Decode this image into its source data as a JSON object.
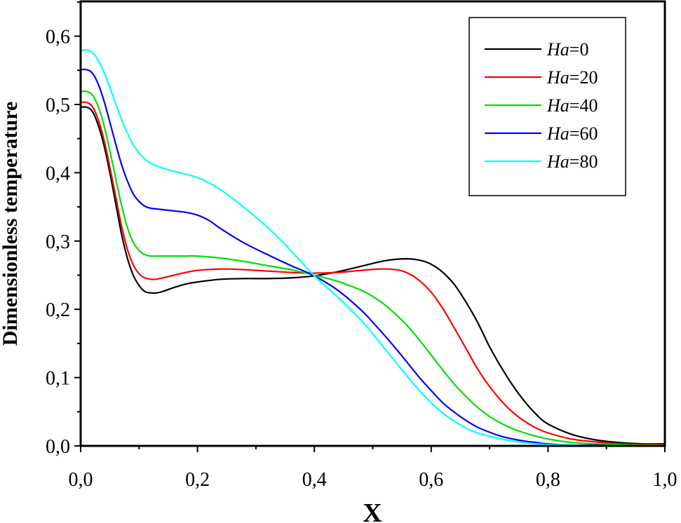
{
  "chart_data": {
    "type": "line",
    "xlabel": "X",
    "ylabel": "Dimensionless temperature",
    "xlim": [
      0.0,
      1.0
    ],
    "ylim": [
      0.0,
      0.65
    ],
    "x_ticks": [
      0.0,
      0.2,
      0.4,
      0.6,
      0.8,
      1.0
    ],
    "x_tick_labels": [
      "0,0",
      "0,2",
      "0,4",
      "0,6",
      "0,8",
      "1,0"
    ],
    "y_ticks": [
      0.0,
      0.1,
      0.2,
      0.3,
      0.4,
      0.5,
      0.6
    ],
    "y_tick_labels": [
      "0,0",
      "0,1",
      "0,2",
      "0,3",
      "0,4",
      "0,5",
      "0,6"
    ],
    "grid": false,
    "legend_position": "top-right",
    "series": [
      {
        "name": "Ha=0",
        "name_italic": "Ha",
        "name_rest": "=0",
        "color": "#000000",
        "x": [
          0,
          0.01,
          0.02,
          0.03,
          0.04,
          0.05,
          0.06,
          0.07,
          0.08,
          0.09,
          0.1,
          0.11,
          0.12,
          0.13,
          0.14,
          0.16,
          0.18,
          0.2,
          0.24,
          0.28,
          0.32,
          0.36,
          0.4,
          0.44,
          0.48,
          0.52,
          0.555,
          0.58,
          0.6,
          0.62,
          0.64,
          0.66,
          0.68,
          0.7,
          0.72,
          0.74,
          0.76,
          0.78,
          0.8,
          0.84,
          0.88,
          0.92,
          0.96,
          1.0
        ],
        "y": [
          0.496,
          0.496,
          0.49,
          0.47,
          0.44,
          0.4,
          0.355,
          0.31,
          0.275,
          0.25,
          0.235,
          0.226,
          0.224,
          0.224,
          0.226,
          0.232,
          0.237,
          0.24,
          0.244,
          0.245,
          0.245,
          0.246,
          0.249,
          0.255,
          0.263,
          0.271,
          0.274,
          0.272,
          0.266,
          0.254,
          0.236,
          0.21,
          0.18,
          0.145,
          0.115,
          0.088,
          0.065,
          0.046,
          0.032,
          0.017,
          0.009,
          0.005,
          0.003,
          0.003
        ]
      },
      {
        "name": "Ha=20",
        "name_italic": "Ha",
        "name_rest": "=20",
        "color": "#ff0000",
        "x": [
          0,
          0.01,
          0.02,
          0.03,
          0.04,
          0.05,
          0.06,
          0.07,
          0.08,
          0.09,
          0.1,
          0.11,
          0.12,
          0.13,
          0.14,
          0.16,
          0.18,
          0.2,
          0.24,
          0.28,
          0.32,
          0.36,
          0.4,
          0.44,
          0.48,
          0.51,
          0.54,
          0.56,
          0.58,
          0.6,
          0.62,
          0.64,
          0.66,
          0.68,
          0.7,
          0.72,
          0.74,
          0.76,
          0.78,
          0.8,
          0.84,
          0.88,
          0.92,
          0.96,
          1.0
        ],
        "y": [
          0.503,
          0.503,
          0.497,
          0.478,
          0.448,
          0.408,
          0.365,
          0.322,
          0.288,
          0.265,
          0.252,
          0.246,
          0.244,
          0.244,
          0.246,
          0.25,
          0.254,
          0.257,
          0.259,
          0.258,
          0.256,
          0.254,
          0.253,
          0.254,
          0.257,
          0.259,
          0.258,
          0.253,
          0.242,
          0.225,
          0.201,
          0.172,
          0.142,
          0.112,
          0.087,
          0.066,
          0.049,
          0.036,
          0.026,
          0.019,
          0.01,
          0.006,
          0.003,
          0.002,
          0.002
        ]
      },
      {
        "name": "Ha=40",
        "name_italic": "Ha",
        "name_rest": "=40",
        "color": "#00e000",
        "x": [
          0,
          0.01,
          0.02,
          0.03,
          0.04,
          0.05,
          0.06,
          0.07,
          0.08,
          0.09,
          0.1,
          0.11,
          0.12,
          0.13,
          0.14,
          0.16,
          0.18,
          0.2,
          0.24,
          0.28,
          0.32,
          0.36,
          0.4,
          0.44,
          0.48,
          0.5,
          0.52,
          0.54,
          0.56,
          0.58,
          0.6,
          0.62,
          0.64,
          0.66,
          0.68,
          0.7,
          0.72,
          0.74,
          0.76,
          0.78,
          0.8,
          0.84,
          0.88,
          0.92,
          0.96,
          1.0
        ],
        "y": [
          0.519,
          0.519,
          0.514,
          0.497,
          0.469,
          0.432,
          0.392,
          0.352,
          0.32,
          0.298,
          0.286,
          0.28,
          0.278,
          0.278,
          0.278,
          0.278,
          0.278,
          0.278,
          0.275,
          0.27,
          0.264,
          0.258,
          0.25,
          0.241,
          0.228,
          0.219,
          0.207,
          0.192,
          0.175,
          0.155,
          0.133,
          0.111,
          0.09,
          0.072,
          0.056,
          0.043,
          0.033,
          0.025,
          0.019,
          0.014,
          0.01,
          0.005,
          0.003,
          0.002,
          0.001,
          0.001
        ]
      },
      {
        "name": "Ha=60",
        "name_italic": "Ha",
        "name_rest": "=60",
        "color": "#0000ff",
        "x": [
          0,
          0.01,
          0.02,
          0.03,
          0.04,
          0.05,
          0.06,
          0.07,
          0.08,
          0.09,
          0.1,
          0.11,
          0.12,
          0.13,
          0.14,
          0.16,
          0.18,
          0.2,
          0.22,
          0.24,
          0.28,
          0.32,
          0.36,
          0.4,
          0.44,
          0.48,
          0.5,
          0.52,
          0.54,
          0.56,
          0.58,
          0.6,
          0.62,
          0.64,
          0.66,
          0.68,
          0.7,
          0.72,
          0.74,
          0.76,
          0.78,
          0.8,
          0.84,
          0.88,
          0.92,
          0.96,
          1.0
        ],
        "y": [
          0.551,
          0.551,
          0.546,
          0.53,
          0.505,
          0.474,
          0.442,
          0.412,
          0.388,
          0.369,
          0.358,
          0.351,
          0.348,
          0.347,
          0.346,
          0.344,
          0.342,
          0.338,
          0.33,
          0.318,
          0.297,
          0.28,
          0.264,
          0.249,
          0.228,
          0.199,
          0.181,
          0.162,
          0.142,
          0.121,
          0.1,
          0.081,
          0.063,
          0.049,
          0.037,
          0.027,
          0.02,
          0.014,
          0.01,
          0.007,
          0.005,
          0.003,
          0.001,
          0.001,
          0.0,
          0.0,
          0.0
        ]
      },
      {
        "name": "Ha=80",
        "name_italic": "Ha",
        "name_rest": "=80",
        "color": "#00ffff",
        "x": [
          0,
          0.01,
          0.02,
          0.03,
          0.04,
          0.05,
          0.06,
          0.07,
          0.08,
          0.09,
          0.1,
          0.11,
          0.12,
          0.13,
          0.14,
          0.16,
          0.18,
          0.2,
          0.22,
          0.24,
          0.28,
          0.32,
          0.36,
          0.4,
          0.44,
          0.48,
          0.5,
          0.52,
          0.54,
          0.56,
          0.58,
          0.6,
          0.62,
          0.64,
          0.66,
          0.68,
          0.7,
          0.72,
          0.74,
          0.76,
          0.78,
          0.8,
          0.84,
          0.88,
          0.92,
          0.96,
          1.0
        ],
        "y": [
          0.579,
          0.58,
          0.576,
          0.565,
          0.547,
          0.525,
          0.501,
          0.478,
          0.458,
          0.441,
          0.429,
          0.42,
          0.414,
          0.41,
          0.407,
          0.402,
          0.398,
          0.393,
          0.385,
          0.375,
          0.349,
          0.32,
          0.286,
          0.249,
          0.218,
          0.184,
          0.164,
          0.143,
          0.122,
          0.101,
          0.081,
          0.063,
          0.048,
          0.036,
          0.026,
          0.019,
          0.014,
          0.01,
          0.007,
          0.005,
          0.003,
          0.002,
          0.001,
          0.0,
          0.0,
          0.0,
          0.0
        ]
      }
    ]
  }
}
